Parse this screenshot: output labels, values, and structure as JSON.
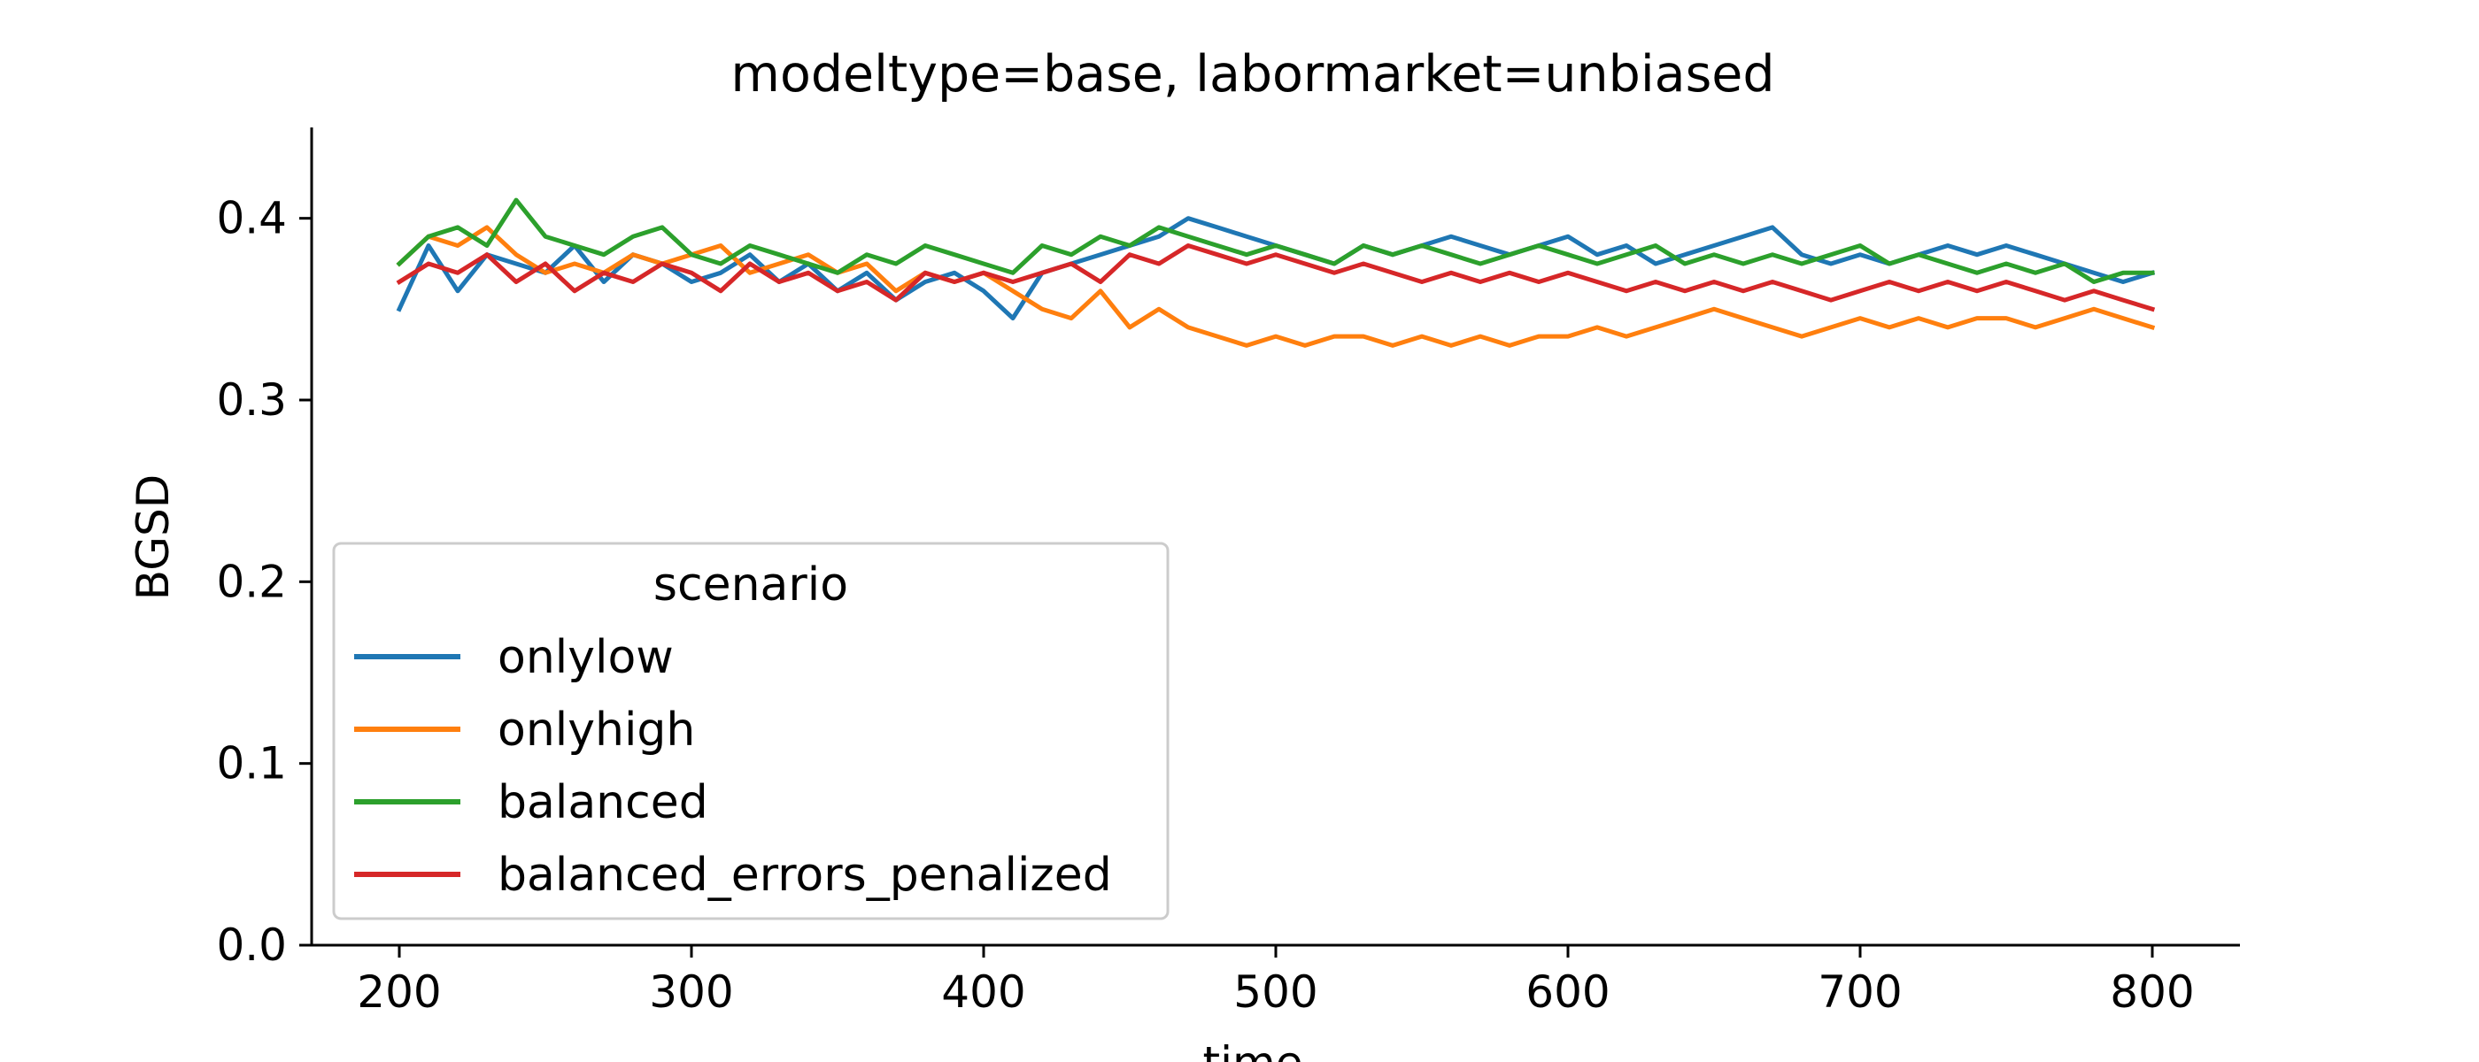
{
  "chart_data": {
    "type": "line",
    "title": "modeltype=base, labormarket=unbiased",
    "xlabel": "time",
    "ylabel": "BGSD",
    "xlim": [
      170,
      830
    ],
    "ylim": [
      0.0,
      0.45
    ],
    "xticks": [
      200,
      300,
      400,
      500,
      600,
      700,
      800
    ],
    "yticks": [
      0.0,
      0.1,
      0.2,
      0.3,
      0.4
    ],
    "grid": false,
    "legend": {
      "title": "scenario",
      "placement": "lower-left"
    },
    "series": [
      {
        "name": "onlylow",
        "color": "#1f77b4",
        "x": [
          200,
          210,
          220,
          230,
          240,
          250,
          260,
          270,
          280,
          290,
          300,
          310,
          320,
          330,
          340,
          350,
          360,
          370,
          380,
          390,
          400,
          410,
          420,
          430,
          440,
          450,
          460,
          470,
          480,
          490,
          500,
          510,
          520,
          530,
          540,
          550,
          560,
          570,
          580,
          590,
          600,
          610,
          620,
          630,
          640,
          650,
          660,
          670,
          680,
          690,
          700,
          710,
          720,
          730,
          740,
          750,
          760,
          770,
          780,
          790,
          800
        ],
        "values": [
          0.35,
          0.385,
          0.36,
          0.38,
          0.375,
          0.37,
          0.385,
          0.365,
          0.38,
          0.375,
          0.365,
          0.37,
          0.38,
          0.365,
          0.375,
          0.36,
          0.37,
          0.355,
          0.365,
          0.37,
          0.36,
          0.345,
          0.37,
          0.375,
          0.38,
          0.385,
          0.39,
          0.4,
          0.395,
          0.39,
          0.385,
          0.38,
          0.375,
          0.385,
          0.38,
          0.385,
          0.39,
          0.385,
          0.38,
          0.385,
          0.39,
          0.38,
          0.385,
          0.375,
          0.38,
          0.385,
          0.39,
          0.395,
          0.38,
          0.375,
          0.38,
          0.375,
          0.38,
          0.385,
          0.38,
          0.385,
          0.38,
          0.375,
          0.37,
          0.365,
          0.37
        ]
      },
      {
        "name": "onlyhigh",
        "color": "#ff7f0e",
        "x": [
          200,
          210,
          220,
          230,
          240,
          250,
          260,
          270,
          280,
          290,
          300,
          310,
          320,
          330,
          340,
          350,
          360,
          370,
          380,
          390,
          400,
          410,
          420,
          430,
          440,
          450,
          460,
          470,
          480,
          490,
          500,
          510,
          520,
          530,
          540,
          550,
          560,
          570,
          580,
          590,
          600,
          610,
          620,
          630,
          640,
          650,
          660,
          670,
          680,
          690,
          700,
          710,
          720,
          730,
          740,
          750,
          760,
          770,
          780,
          790,
          800
        ],
        "values": [
          0.375,
          0.39,
          0.385,
          0.395,
          0.38,
          0.37,
          0.375,
          0.37,
          0.38,
          0.375,
          0.38,
          0.385,
          0.37,
          0.375,
          0.38,
          0.37,
          0.375,
          0.36,
          0.37,
          0.365,
          0.37,
          0.36,
          0.35,
          0.345,
          0.36,
          0.34,
          0.35,
          0.34,
          0.335,
          0.33,
          0.335,
          0.33,
          0.335,
          0.335,
          0.33,
          0.335,
          0.33,
          0.335,
          0.33,
          0.335,
          0.335,
          0.34,
          0.335,
          0.34,
          0.345,
          0.35,
          0.345,
          0.34,
          0.335,
          0.34,
          0.345,
          0.34,
          0.345,
          0.34,
          0.345,
          0.345,
          0.34,
          0.345,
          0.35,
          0.345,
          0.34
        ]
      },
      {
        "name": "balanced",
        "color": "#2ca02c",
        "x": [
          200,
          210,
          220,
          230,
          240,
          250,
          260,
          270,
          280,
          290,
          300,
          310,
          320,
          330,
          340,
          350,
          360,
          370,
          380,
          390,
          400,
          410,
          420,
          430,
          440,
          450,
          460,
          470,
          480,
          490,
          500,
          510,
          520,
          530,
          540,
          550,
          560,
          570,
          580,
          590,
          600,
          610,
          620,
          630,
          640,
          650,
          660,
          670,
          680,
          690,
          700,
          710,
          720,
          730,
          740,
          750,
          760,
          770,
          780,
          790,
          800
        ],
        "values": [
          0.375,
          0.39,
          0.395,
          0.385,
          0.41,
          0.39,
          0.385,
          0.38,
          0.39,
          0.395,
          0.38,
          0.375,
          0.385,
          0.38,
          0.375,
          0.37,
          0.38,
          0.375,
          0.385,
          0.38,
          0.375,
          0.37,
          0.385,
          0.38,
          0.39,
          0.385,
          0.395,
          0.39,
          0.385,
          0.38,
          0.385,
          0.38,
          0.375,
          0.385,
          0.38,
          0.385,
          0.38,
          0.375,
          0.38,
          0.385,
          0.38,
          0.375,
          0.38,
          0.385,
          0.375,
          0.38,
          0.375,
          0.38,
          0.375,
          0.38,
          0.385,
          0.375,
          0.38,
          0.375,
          0.37,
          0.375,
          0.37,
          0.375,
          0.365,
          0.37,
          0.37
        ]
      },
      {
        "name": "balanced_errors_penalized",
        "color": "#d62728",
        "x": [
          200,
          210,
          220,
          230,
          240,
          250,
          260,
          270,
          280,
          290,
          300,
          310,
          320,
          330,
          340,
          350,
          360,
          370,
          380,
          390,
          400,
          410,
          420,
          430,
          440,
          450,
          460,
          470,
          480,
          490,
          500,
          510,
          520,
          530,
          540,
          550,
          560,
          570,
          580,
          590,
          600,
          610,
          620,
          630,
          640,
          650,
          660,
          670,
          680,
          690,
          700,
          710,
          720,
          730,
          740,
          750,
          760,
          770,
          780,
          790,
          800
        ],
        "values": [
          0.365,
          0.375,
          0.37,
          0.38,
          0.365,
          0.375,
          0.36,
          0.37,
          0.365,
          0.375,
          0.37,
          0.36,
          0.375,
          0.365,
          0.37,
          0.36,
          0.365,
          0.355,
          0.37,
          0.365,
          0.37,
          0.365,
          0.37,
          0.375,
          0.365,
          0.38,
          0.375,
          0.385,
          0.38,
          0.375,
          0.38,
          0.375,
          0.37,
          0.375,
          0.37,
          0.365,
          0.37,
          0.365,
          0.37,
          0.365,
          0.37,
          0.365,
          0.36,
          0.365,
          0.36,
          0.365,
          0.36,
          0.365,
          0.36,
          0.355,
          0.36,
          0.365,
          0.36,
          0.365,
          0.36,
          0.365,
          0.36,
          0.355,
          0.36,
          0.355,
          0.35
        ]
      }
    ]
  }
}
